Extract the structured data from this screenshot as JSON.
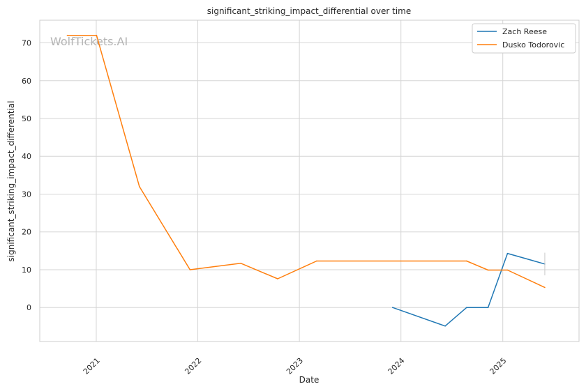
{
  "watermark": "WolfTickets.AI",
  "chart_data": {
    "type": "line",
    "title": "significant_striking_impact_differential over time",
    "xlabel": "Date",
    "ylabel": "significant_striking_impact_differential",
    "x_ticks": [
      "2021",
      "2022",
      "2023",
      "2024",
      "2025"
    ],
    "y_ticks": [
      0,
      10,
      20,
      30,
      40,
      50,
      60,
      70
    ],
    "xlim": [
      "2020-06-12",
      "2025-10-02"
    ],
    "ylim": [
      -9,
      76
    ],
    "grid": true,
    "legend": "top-right",
    "colors": {
      "Zach Reese": "#1f77b4",
      "Dusko Todorovic": "#ff7f0e"
    },
    "series": [
      {
        "name": "Zach Reese",
        "points": [
          {
            "x": "2023-12-02",
            "y": 0
          },
          {
            "x": "2024-06-08",
            "y": -4.9
          },
          {
            "x": "2024-08-24",
            "y": 0
          },
          {
            "x": "2024-11-09",
            "y": 0
          },
          {
            "x": "2025-01-18",
            "y": 14.3
          },
          {
            "x": "2025-06-01",
            "y": 11.5
          }
        ]
      },
      {
        "name": "Dusko Todorovic",
        "points": [
          {
            "x": "2020-09-19",
            "y": 72
          },
          {
            "x": "2021-01-02",
            "y": 72
          },
          {
            "x": "2021-06-05",
            "y": 32
          },
          {
            "x": "2021-12-04",
            "y": 10
          },
          {
            "x": "2022-06-04",
            "y": 11.7
          },
          {
            "x": "2022-10-15",
            "y": 7.6
          },
          {
            "x": "2023-03-04",
            "y": 12.3
          },
          {
            "x": "2024-08-24",
            "y": 12.3
          },
          {
            "x": "2024-11-09",
            "y": 9.9
          },
          {
            "x": "2025-01-18",
            "y": 9.9
          },
          {
            "x": "2025-06-01",
            "y": 5.3
          }
        ]
      }
    ]
  }
}
